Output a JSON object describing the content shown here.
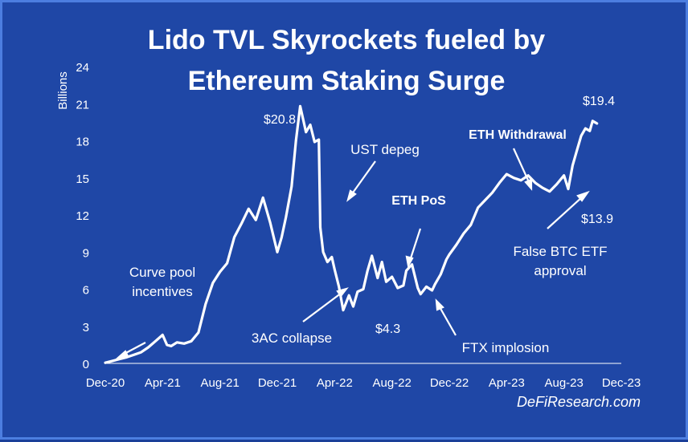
{
  "chart_data": {
    "type": "line",
    "title_line1": "Lido TVL Skyrockets fueled by",
    "title_line2": "Ethereum Staking Surge",
    "ylabel": "Billions",
    "ylim": [
      0,
      24
    ],
    "yticks": [
      "0",
      "3",
      "6",
      "9",
      "12",
      "15",
      "18",
      "21",
      "24"
    ],
    "xticks": [
      "Dec-20",
      "Apr-21",
      "Aug-21",
      "Dec-21",
      "Apr-22",
      "Aug-22",
      "Dec-22",
      "Apr-23",
      "Aug-23",
      "Dec-23"
    ],
    "xlim_months": [
      0,
      36
    ],
    "series": [
      {
        "name": "Lido TVL",
        "x_months": [
          0,
          0.5,
          1,
          1.5,
          2,
          2.5,
          3,
          3.5,
          4,
          4.3,
          4.6,
          5,
          5.5,
          6,
          6.5,
          7,
          7.5,
          8,
          8.5,
          9,
          9.5,
          10,
          10.5,
          11,
          11.5,
          12,
          12.3,
          12.6,
          13,
          13.3,
          13.6,
          14,
          14.3,
          14.6,
          14.9,
          15,
          15.2,
          15.5,
          15.8,
          16,
          16.3,
          16.6,
          17,
          17.3,
          17.6,
          18,
          18.3,
          18.6,
          19,
          19.3,
          19.6,
          20,
          20.4,
          20.8,
          21,
          21.4,
          21.8,
          22,
          22.4,
          22.8,
          23,
          23.4,
          23.8,
          24,
          24.5,
          25,
          25.5,
          26,
          26.5,
          27,
          27.5,
          28,
          28.5,
          29,
          29.5,
          30,
          30.5,
          31,
          31.5,
          32,
          32.3,
          32.6,
          32.9,
          33.2,
          33.5,
          33.8,
          34,
          34.3
        ],
        "values": [
          0.05,
          0.2,
          0.35,
          0.5,
          0.7,
          0.9,
          1.3,
          1.8,
          2.3,
          1.5,
          1.4,
          1.7,
          1.6,
          1.8,
          2.5,
          4.8,
          6.5,
          7.4,
          8.1,
          10.2,
          11.3,
          12.5,
          11.6,
          13.4,
          11.4,
          9.0,
          10.2,
          11.8,
          14.3,
          18.0,
          20.8,
          18.7,
          19.3,
          17.9,
          18.1,
          11.0,
          9.0,
          8.2,
          8.6,
          7.6,
          6.2,
          4.3,
          5.5,
          4.6,
          5.8,
          6.0,
          7.5,
          8.7,
          6.9,
          8.2,
          6.6,
          7.0,
          6.1,
          6.3,
          7.5,
          8.0,
          6.1,
          5.6,
          6.2,
          5.9,
          6.4,
          7.2,
          8.4,
          8.8,
          9.6,
          10.5,
          11.2,
          12.6,
          13.2,
          13.8,
          14.6,
          15.3,
          15.0,
          14.8,
          15.2,
          14.6,
          14.2,
          13.9,
          14.5,
          15.2,
          14.1,
          16.0,
          17.2,
          18.4,
          19.0,
          18.8,
          19.6,
          19.4
        ]
      }
    ],
    "point_labels": [
      {
        "text": "$20.8",
        "x_month": 15.2,
        "value": 20.8
      },
      {
        "text": "$4.3",
        "x_month": 19.9,
        "value": 4.3
      },
      {
        "text": "$13.9",
        "x_month": 33.6,
        "value": 13.9
      },
      {
        "text": "$19.4",
        "x_month": 34.0,
        "value": 19.4
      }
    ],
    "annotations": [
      {
        "text": "Curve pool",
        "text2": "incentives",
        "bold": false
      },
      {
        "text": "UST depeg",
        "text2": "",
        "bold": false
      },
      {
        "text": "ETH PoS",
        "text2": "",
        "bold": true
      },
      {
        "text": "ETH Withdrawal",
        "text2": "",
        "bold": true
      },
      {
        "text": "3AC collapse",
        "text2": "",
        "bold": false
      },
      {
        "text": "FTX implosion",
        "text2": "",
        "bold": false
      },
      {
        "text": "False BTC ETF",
        "text2": "approval",
        "bold": false
      }
    ],
    "watermark": "DeFiResearch.com",
    "colors": {
      "background": "#1f47a6",
      "border": "#4c7ee0",
      "line": "#ffffff",
      "text": "#ffffff"
    }
  }
}
